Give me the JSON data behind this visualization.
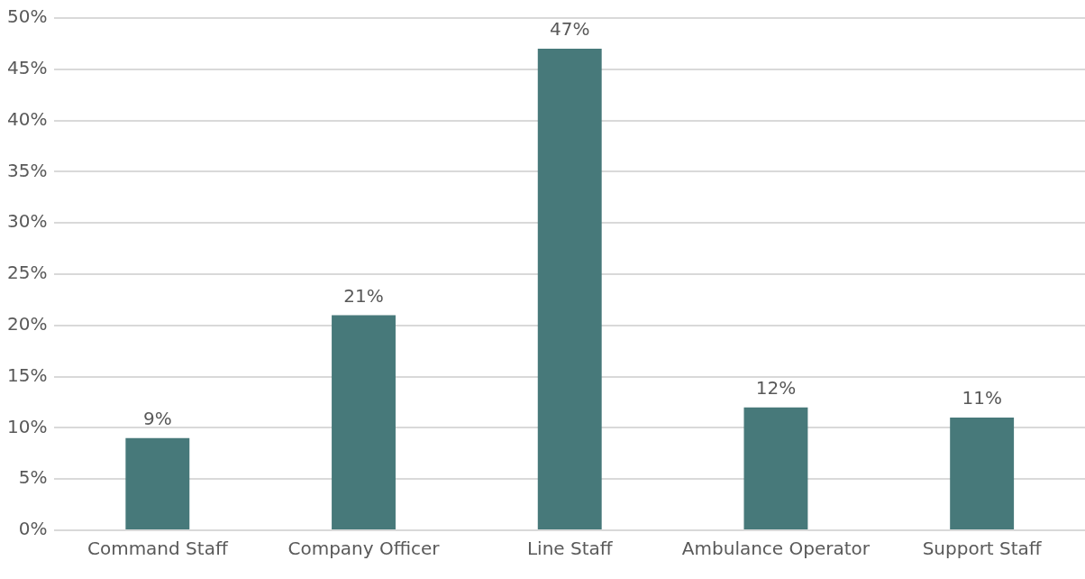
{
  "chart_data": {
    "type": "bar",
    "categories": [
      "Command Staff",
      "Company Officer",
      "Line Staff",
      "Ambulance Operator",
      "Support Staff"
    ],
    "values": [
      9,
      21,
      47,
      12,
      11
    ],
    "color": "#47797a",
    "value_labels": [
      "9%",
      "21%",
      "47%",
      "12%",
      "11%"
    ],
    "ylim": [
      0,
      50
    ],
    "yticks": [
      {
        "value": 0,
        "label": "0%"
      },
      {
        "value": 5,
        "label": "5%"
      },
      {
        "value": 10,
        "label": "10%"
      },
      {
        "value": 15,
        "label": "15%"
      },
      {
        "value": 20,
        "label": "20%"
      },
      {
        "value": 25,
        "label": "25%"
      },
      {
        "value": 30,
        "label": "30%"
      },
      {
        "value": 35,
        "label": "35%"
      },
      {
        "value": 40,
        "label": "40%"
      },
      {
        "value": 45,
        "label": "45%"
      },
      {
        "value": 50,
        "label": "50%"
      }
    ],
    "grid": "y",
    "legend": false
  }
}
